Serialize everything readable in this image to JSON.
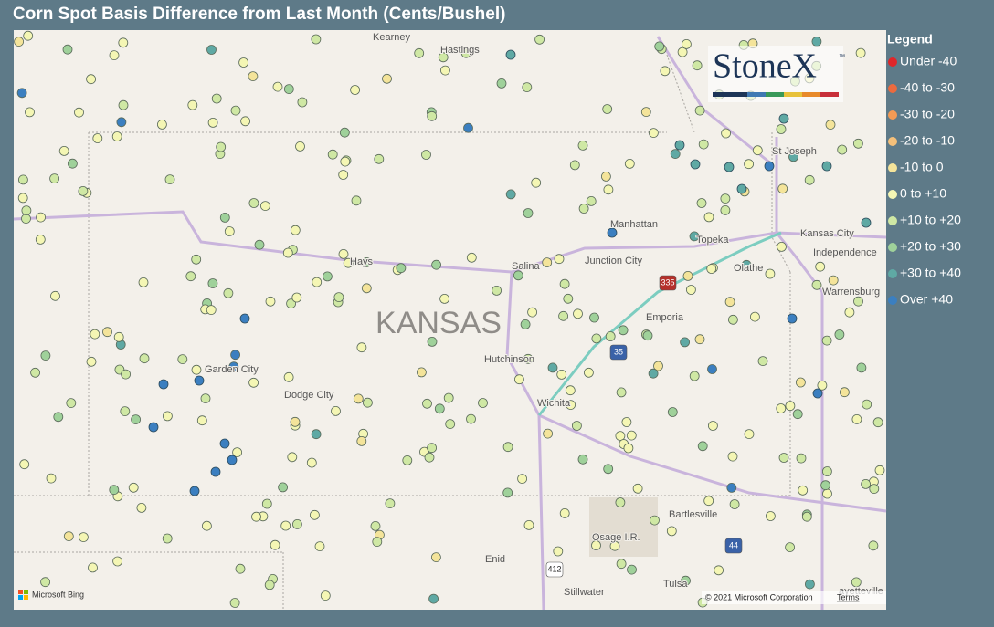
{
  "header": {
    "title": "Corn Spot Basis Difference from Last Month (Cents/Bushel)"
  },
  "logo": {
    "text": "StoneX",
    "mark": "™"
  },
  "legend": {
    "title": "Legend",
    "items": [
      {
        "label": "Under -40",
        "color": "#e0262a"
      },
      {
        "label": "-40 to -30",
        "color": "#ec6a3e"
      },
      {
        "label": "-30 to -20",
        "color": "#f29a55"
      },
      {
        "label": "-20 to -10",
        "color": "#f5c07a"
      },
      {
        "label": "-10 to 0",
        "color": "#f4e49a"
      },
      {
        "label": "0 to +10",
        "color": "#f4f6b4"
      },
      {
        "label": "+10 to +20",
        "color": "#cfe8a4"
      },
      {
        "label": "+20 to +30",
        "color": "#9fd19a"
      },
      {
        "label": "+30 to +40",
        "color": "#5fa9a4"
      },
      {
        "label": "Over +40",
        "color": "#3b7fc0"
      }
    ]
  },
  "map": {
    "region": "KANSAS",
    "places": [
      "Kearney",
      "Hastings",
      "St Joseph",
      "Manhattan",
      "Topeka",
      "Kansas City",
      "Independence",
      "Hays",
      "Salina",
      "Junction City",
      "Olathe",
      "Warrensburg",
      "Emporia",
      "Hutchinson",
      "Garden City",
      "Dodge City",
      "Wichita",
      "Bartlesville",
      "Osage I.R.",
      "Enid",
      "Stillwater",
      "Tulsa",
      "ayetteville"
    ],
    "shields": [
      "335",
      "35",
      "412",
      "44"
    ]
  },
  "footer": {
    "provider": "Microsoft Bing",
    "copyright": "© 2021 Microsoft Corporation",
    "terms": "Terms"
  }
}
